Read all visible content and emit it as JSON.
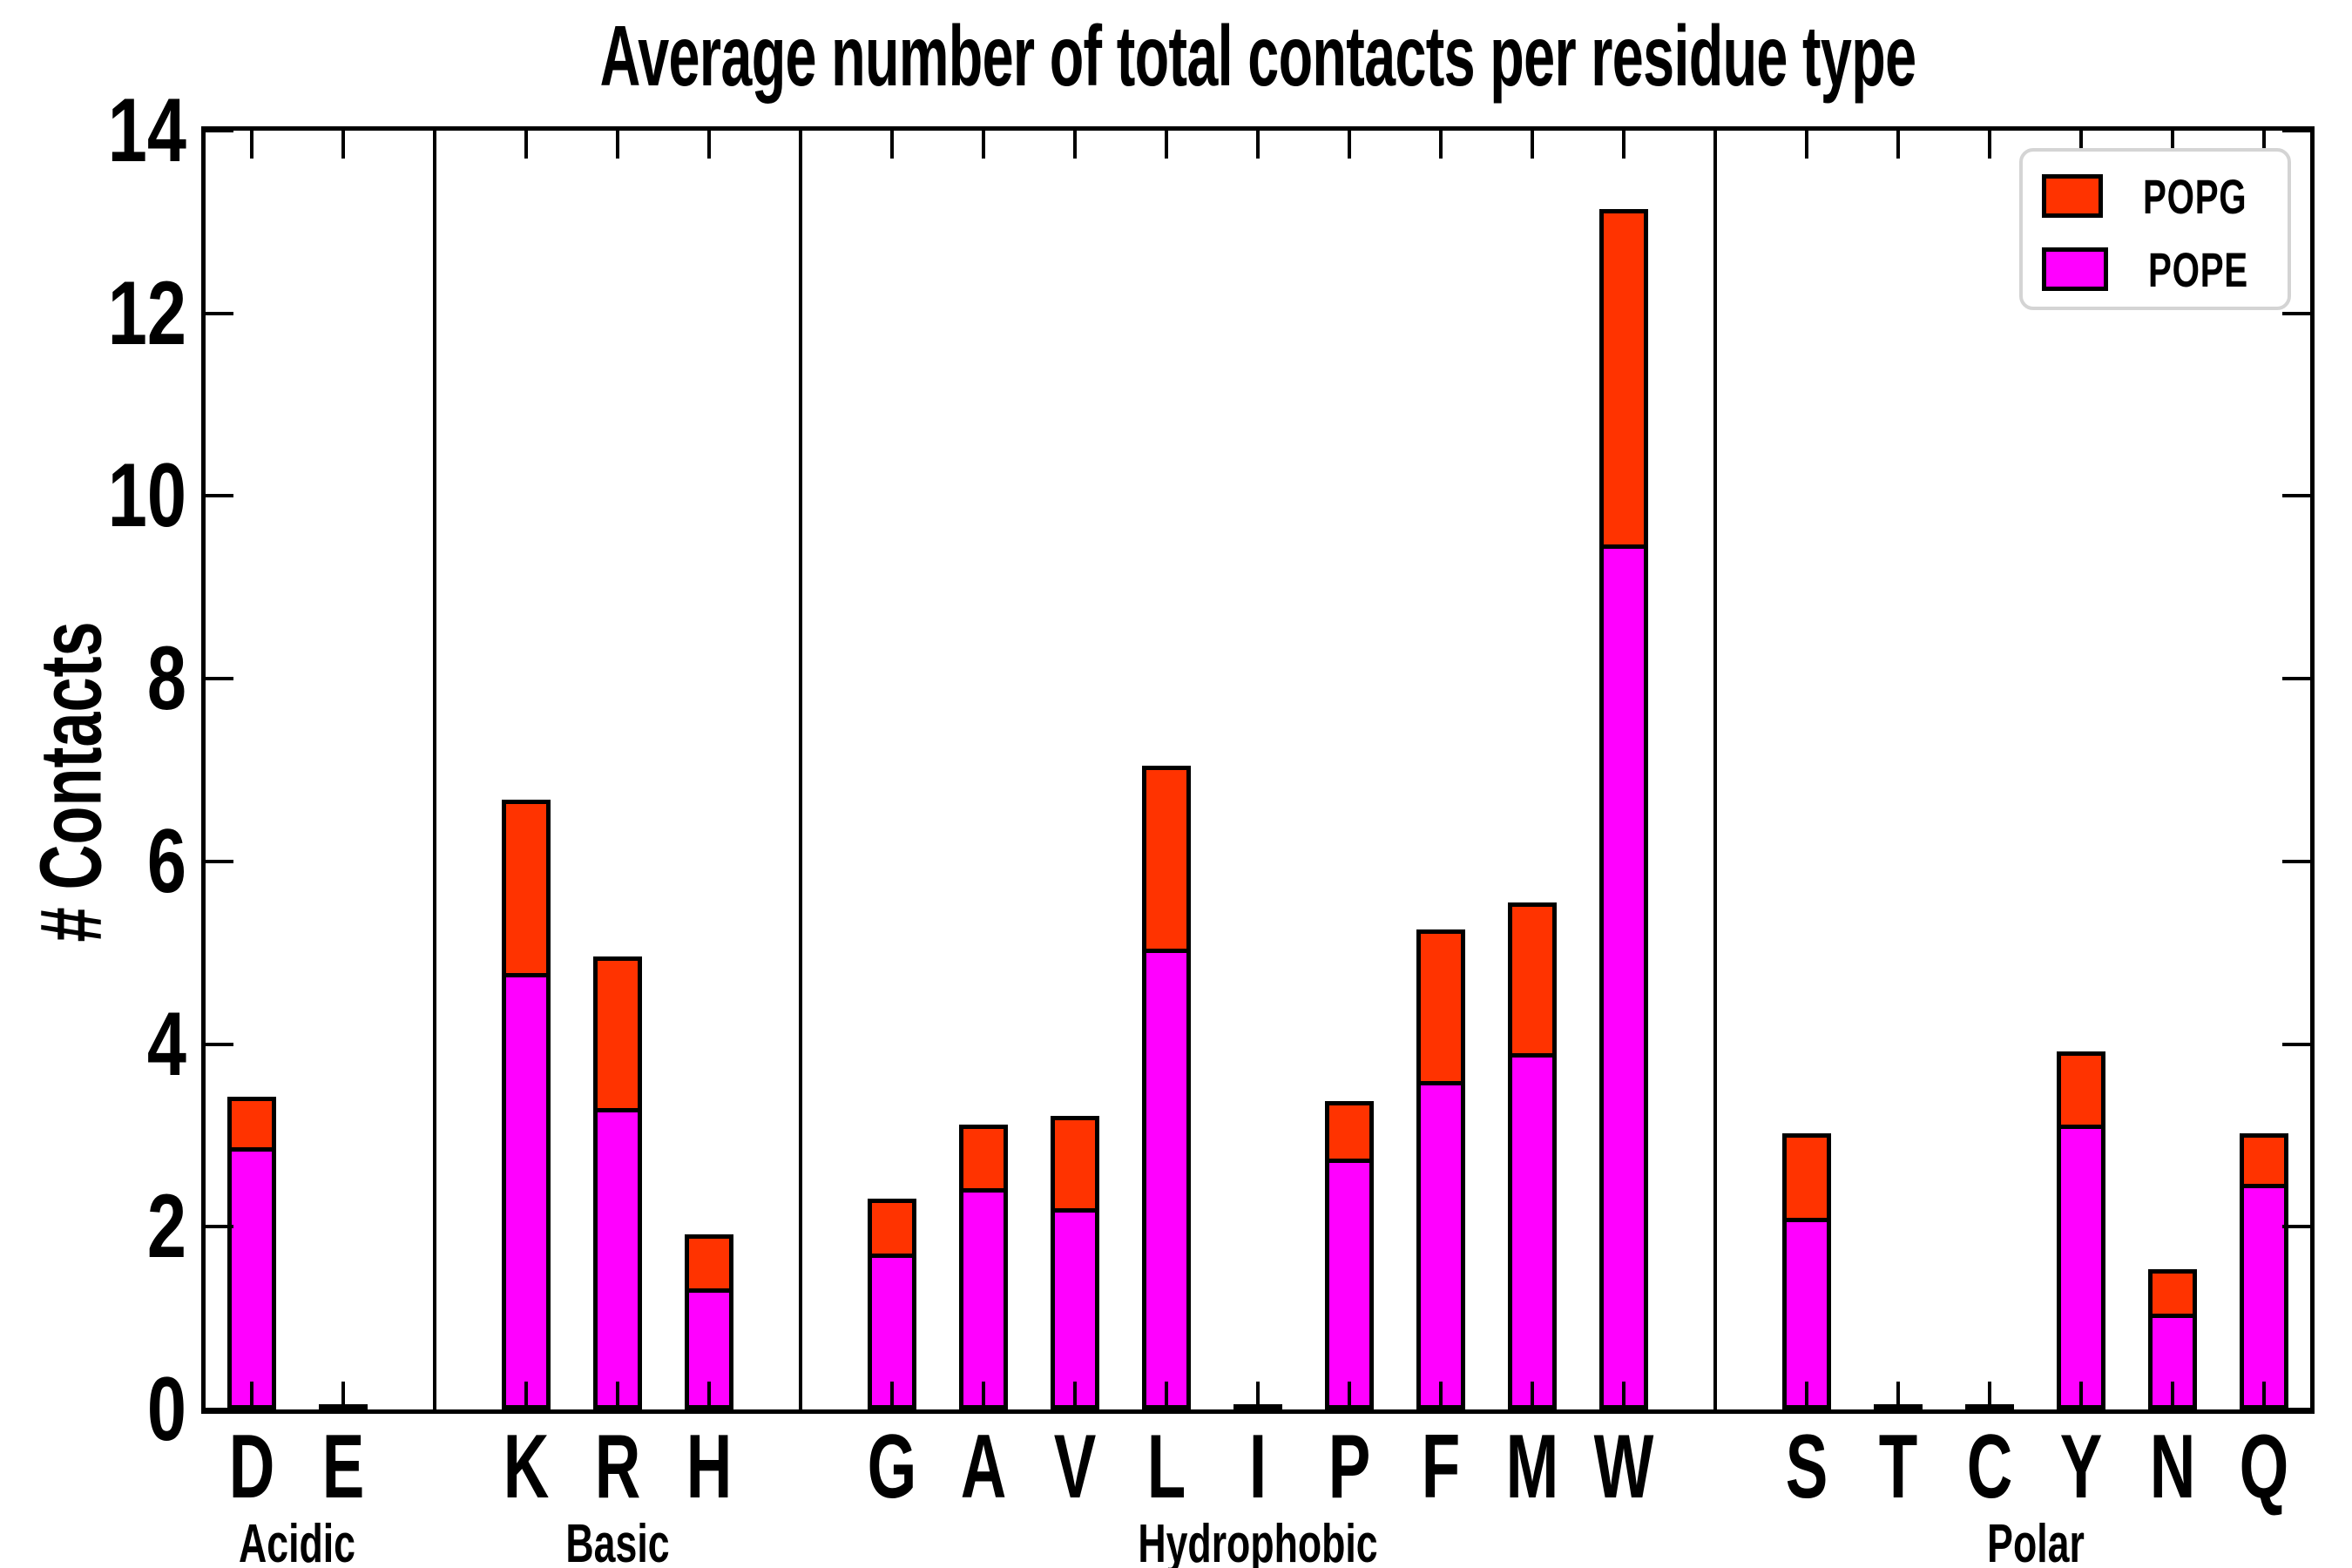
{
  "title": "Average number of total contacts per residue type",
  "ylabel": "# Contacts",
  "legend": {
    "entries": [
      {
        "label": "POPG",
        "color": "#ff3300"
      },
      {
        "label": "POPE",
        "color": "#ff00ff"
      }
    ]
  },
  "chart_data": {
    "type": "bar",
    "stacked": true,
    "title": "Average number of total contacts per residue type",
    "xlabel": "",
    "ylabel": "# Contacts",
    "ylim": [
      0,
      14
    ],
    "yticks": [
      0,
      2,
      4,
      6,
      8,
      10,
      12,
      14
    ],
    "grid": false,
    "legend_position": "upper right",
    "groups": [
      {
        "label": "Acidic",
        "residues": [
          "D",
          "E"
        ]
      },
      {
        "label": "Basic",
        "residues": [
          "K",
          "R",
          "H"
        ]
      },
      {
        "label": "Hydrophobic",
        "residues": [
          "G",
          "A",
          "V",
          "L",
          "I",
          "P",
          "F",
          "M",
          "W"
        ]
      },
      {
        "label": "Polar",
        "residues": [
          "S",
          "T",
          "C",
          "Y",
          "N",
          "Q"
        ]
      }
    ],
    "categories": [
      "D",
      "E",
      "K",
      "R",
      "H",
      "G",
      "A",
      "V",
      "L",
      "I",
      "P",
      "F",
      "M",
      "W",
      "S",
      "T",
      "C",
      "Y",
      "N",
      "Q"
    ],
    "series": [
      {
        "name": "POPE",
        "color": "#ff00ff",
        "values": [
          2.82,
          0.02,
          4.73,
          3.25,
          1.28,
          1.66,
          2.38,
          2.15,
          5.0,
          0.02,
          2.7,
          3.54,
          3.85,
          9.42,
          2.05,
          0.02,
          0.02,
          3.07,
          1.01,
          2.42
        ]
      },
      {
        "name": "POPG",
        "color": "#ff3300",
        "values": [
          0.6,
          0.01,
          1.95,
          1.71,
          0.64,
          0.65,
          0.74,
          1.06,
          2.05,
          0.01,
          0.68,
          1.71,
          1.7,
          3.72,
          0.97,
          0.01,
          0.01,
          0.85,
          0.53,
          0.6
        ]
      }
    ]
  }
}
